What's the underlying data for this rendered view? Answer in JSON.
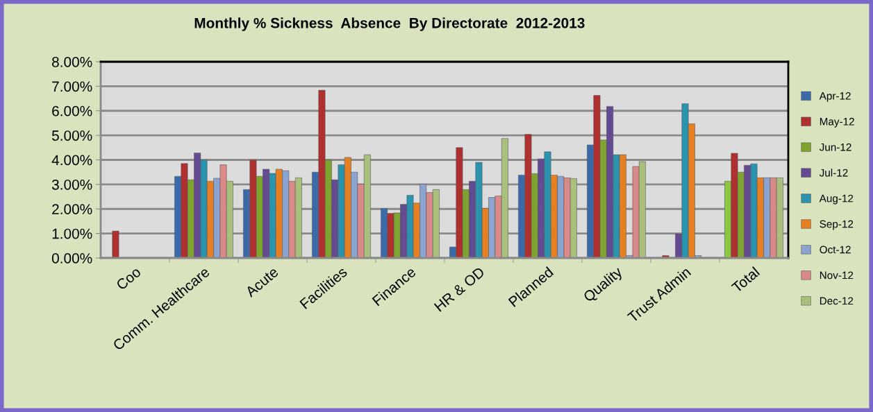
{
  "chart_data": {
    "type": "bar",
    "title": "Monthly % Sickness  Absence  By Directorate  2012-2013",
    "categories": [
      "Coo",
      "Comm. Healthcare",
      "Acute",
      "Facilities",
      "Finance",
      "HR & OD",
      "Planned",
      "Quality",
      "Trust Admin",
      "Total"
    ],
    "series": [
      {
        "name": "Apr-12",
        "color": "#3a6aaa",
        "colors": [
          "#3a6aaa",
          "#3a6aaa",
          "#3a6aaa",
          "#3a6aaa",
          "#3a6aaa",
          "#3a6aaa",
          "#3a6aaa",
          "#3a6aaa",
          "#3a6aaa",
          "#8cc63f"
        ],
        "values": [
          null,
          3.33,
          2.79,
          3.5,
          2.02,
          0.45,
          3.38,
          4.61,
          null,
          3.13
        ]
      },
      {
        "name": "May-12",
        "color": "#b03030",
        "values": [
          1.1,
          3.85,
          3.99,
          6.84,
          1.82,
          4.5,
          5.04,
          6.63,
          0.1,
          4.27
        ]
      },
      {
        "name": "Jun-12",
        "color": "#7fa32f",
        "values": [
          null,
          3.19,
          3.33,
          3.99,
          1.84,
          2.79,
          3.44,
          4.81,
          null,
          3.5
        ]
      },
      {
        "name": "Jul-12",
        "color": "#644a91",
        "values": [
          null,
          4.28,
          3.62,
          3.19,
          2.19,
          3.13,
          4.04,
          6.18,
          0.99,
          3.78
        ]
      },
      {
        "name": "Aug-12",
        "color": "#2b93ad",
        "values": [
          null,
          3.99,
          3.45,
          3.8,
          2.56,
          3.9,
          4.33,
          4.21,
          6.29,
          3.84
        ]
      },
      {
        "name": "Sep-12",
        "color": "#e67e22",
        "values": [
          null,
          3.13,
          3.62,
          4.1,
          2.24,
          2.02,
          3.38,
          4.21,
          5.47,
          3.27
        ]
      },
      {
        "name": "Oct-12",
        "color": "#8aa3cf",
        "values": [
          null,
          3.25,
          3.56,
          3.5,
          3.01,
          2.47,
          3.33,
          0.1,
          0.1,
          3.27
        ]
      },
      {
        "name": "Nov-12",
        "color": "#d98a88",
        "values": [
          null,
          3.8,
          3.13,
          3.01,
          2.67,
          2.53,
          3.27,
          3.73,
          null,
          3.27
        ]
      },
      {
        "name": "Dec-12",
        "color": "#a8c07c",
        "values": [
          null,
          3.13,
          3.27,
          4.21,
          2.79,
          4.87,
          3.24,
          3.93,
          null,
          3.27
        ]
      }
    ],
    "ylim": [
      0,
      8
    ],
    "yticks": [
      {
        "value": 0,
        "label": "0.00%"
      },
      {
        "value": 1,
        "label": "1.00%"
      },
      {
        "value": 2,
        "label": "2.00%"
      },
      {
        "value": 3,
        "label": "3.00%"
      },
      {
        "value": 4,
        "label": "4.00%"
      },
      {
        "value": 5,
        "label": "5.00%"
      },
      {
        "value": 6,
        "label": "6.00%"
      },
      {
        "value": 7,
        "label": "7.00%"
      },
      {
        "value": 8,
        "label": "8.00%"
      }
    ],
    "grid": "y",
    "legend": "right"
  }
}
